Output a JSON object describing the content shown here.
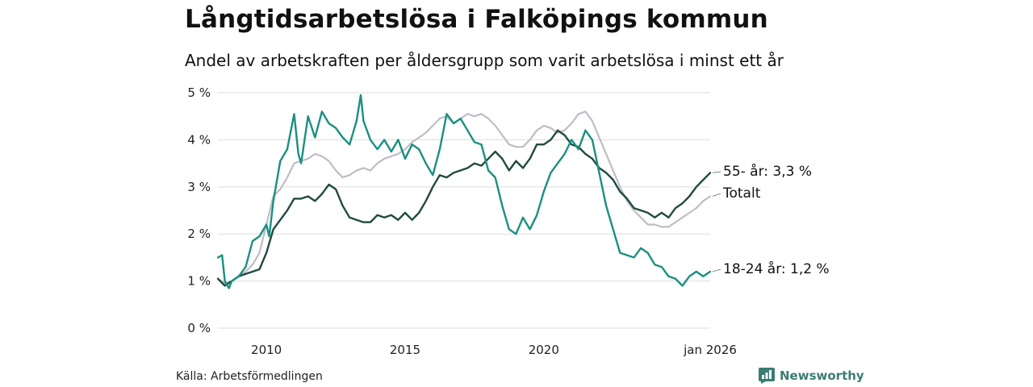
{
  "header": {
    "title": "Långtidsarbetslösa i Falköpings kommun",
    "subtitle": "Andel av arbetskraften per åldersgrupp som varit arbetslösa i minst ett år"
  },
  "footer": {
    "source": "Källa: Arbetsförmedlingen",
    "brand": "Newsworthy"
  },
  "colors": {
    "youth": "#1a9080",
    "older": "#214a40",
    "total": "#c0bcc8",
    "grid": "#dddddd",
    "brand": "#3a7d73"
  },
  "chart_data": {
    "type": "line",
    "title": "Långtidsarbetslösa i Falköpings kommun",
    "subtitle": "Andel av arbetskraften per åldersgrupp som varit arbetslösa i minst ett år",
    "xlabel": "",
    "ylabel": "",
    "x_range": [
      2008.25,
      2026.0
    ],
    "ylim": [
      0,
      5
    ],
    "y_ticks": [
      0,
      1,
      2,
      3,
      4,
      5
    ],
    "y_tick_labels": [
      "0 %",
      "1 %",
      "2 %",
      "3 %",
      "4 %",
      "5 %"
    ],
    "x_ticks": [
      2010,
      2015,
      2020,
      2026.0
    ],
    "x_tick_labels": [
      "2010",
      "2015",
      "2020",
      "jan 2026"
    ],
    "grid": true,
    "legend": "direct labels at line ends (right)",
    "series": [
      {
        "name": "Totalt",
        "label": "Totalt",
        "color_key": "total",
        "points": [
          [
            2008.25,
            1.05
          ],
          [
            2008.5,
            0.95
          ],
          [
            2008.75,
            1.0
          ],
          [
            2009.0,
            1.1
          ],
          [
            2009.25,
            1.2
          ],
          [
            2009.5,
            1.35
          ],
          [
            2009.75,
            1.6
          ],
          [
            2010.0,
            2.2
          ],
          [
            2010.25,
            2.8
          ],
          [
            2010.5,
            2.95
          ],
          [
            2010.75,
            3.2
          ],
          [
            2011.0,
            3.5
          ],
          [
            2011.25,
            3.55
          ],
          [
            2011.5,
            3.6
          ],
          [
            2011.75,
            3.7
          ],
          [
            2012.0,
            3.65
          ],
          [
            2012.25,
            3.55
          ],
          [
            2012.5,
            3.35
          ],
          [
            2012.75,
            3.2
          ],
          [
            2013.0,
            3.25
          ],
          [
            2013.25,
            3.35
          ],
          [
            2013.5,
            3.4
          ],
          [
            2013.75,
            3.35
          ],
          [
            2014.0,
            3.5
          ],
          [
            2014.25,
            3.6
          ],
          [
            2014.5,
            3.65
          ],
          [
            2014.75,
            3.7
          ],
          [
            2015.0,
            3.8
          ],
          [
            2015.25,
            3.95
          ],
          [
            2015.5,
            4.05
          ],
          [
            2015.75,
            4.15
          ],
          [
            2016.0,
            4.3
          ],
          [
            2016.25,
            4.45
          ],
          [
            2016.5,
            4.5
          ],
          [
            2016.75,
            4.35
          ],
          [
            2017.0,
            4.45
          ],
          [
            2017.25,
            4.55
          ],
          [
            2017.5,
            4.5
          ],
          [
            2017.75,
            4.55
          ],
          [
            2018.0,
            4.45
          ],
          [
            2018.25,
            4.3
          ],
          [
            2018.5,
            4.1
          ],
          [
            2018.75,
            3.9
          ],
          [
            2019.0,
            3.85
          ],
          [
            2019.25,
            3.85
          ],
          [
            2019.5,
            4.0
          ],
          [
            2019.75,
            4.2
          ],
          [
            2020.0,
            4.3
          ],
          [
            2020.25,
            4.25
          ],
          [
            2020.5,
            4.15
          ],
          [
            2020.75,
            4.2
          ],
          [
            2021.0,
            4.35
          ],
          [
            2021.25,
            4.55
          ],
          [
            2021.5,
            4.6
          ],
          [
            2021.75,
            4.4
          ],
          [
            2022.0,
            4.05
          ],
          [
            2022.25,
            3.7
          ],
          [
            2022.5,
            3.35
          ],
          [
            2022.75,
            3.0
          ],
          [
            2023.0,
            2.7
          ],
          [
            2023.25,
            2.5
          ],
          [
            2023.5,
            2.35
          ],
          [
            2023.75,
            2.2
          ],
          [
            2024.0,
            2.2
          ],
          [
            2024.25,
            2.15
          ],
          [
            2024.5,
            2.15
          ],
          [
            2024.75,
            2.25
          ],
          [
            2025.0,
            2.35
          ],
          [
            2025.25,
            2.45
          ],
          [
            2025.5,
            2.55
          ],
          [
            2025.75,
            2.7
          ],
          [
            2026.0,
            2.8
          ]
        ]
      },
      {
        "name": "55- år",
        "label": "55- år: 3,3 %",
        "color_key": "older",
        "points": [
          [
            2008.25,
            1.05
          ],
          [
            2008.5,
            0.9
          ],
          [
            2008.75,
            1.0
          ],
          [
            2009.0,
            1.1
          ],
          [
            2009.25,
            1.15
          ],
          [
            2009.5,
            1.2
          ],
          [
            2009.75,
            1.25
          ],
          [
            2010.0,
            1.6
          ],
          [
            2010.25,
            2.1
          ],
          [
            2010.5,
            2.3
          ],
          [
            2010.75,
            2.5
          ],
          [
            2011.0,
            2.75
          ],
          [
            2011.25,
            2.75
          ],
          [
            2011.5,
            2.8
          ],
          [
            2011.75,
            2.7
          ],
          [
            2012.0,
            2.85
          ],
          [
            2012.25,
            3.05
          ],
          [
            2012.5,
            2.95
          ],
          [
            2012.75,
            2.6
          ],
          [
            2013.0,
            2.35
          ],
          [
            2013.25,
            2.3
          ],
          [
            2013.5,
            2.25
          ],
          [
            2013.75,
            2.25
          ],
          [
            2014.0,
            2.4
          ],
          [
            2014.25,
            2.35
          ],
          [
            2014.5,
            2.4
          ],
          [
            2014.75,
            2.3
          ],
          [
            2015.0,
            2.45
          ],
          [
            2015.25,
            2.3
          ],
          [
            2015.5,
            2.45
          ],
          [
            2015.75,
            2.7
          ],
          [
            2016.0,
            3.0
          ],
          [
            2016.25,
            3.25
          ],
          [
            2016.5,
            3.2
          ],
          [
            2016.75,
            3.3
          ],
          [
            2017.0,
            3.35
          ],
          [
            2017.25,
            3.4
          ],
          [
            2017.5,
            3.5
          ],
          [
            2017.75,
            3.45
          ],
          [
            2018.0,
            3.6
          ],
          [
            2018.25,
            3.75
          ],
          [
            2018.5,
            3.6
          ],
          [
            2018.75,
            3.35
          ],
          [
            2019.0,
            3.55
          ],
          [
            2019.25,
            3.4
          ],
          [
            2019.5,
            3.6
          ],
          [
            2019.75,
            3.9
          ],
          [
            2020.0,
            3.9
          ],
          [
            2020.25,
            4.0
          ],
          [
            2020.5,
            4.2
          ],
          [
            2020.75,
            4.1
          ],
          [
            2021.0,
            3.9
          ],
          [
            2021.25,
            3.85
          ],
          [
            2021.5,
            3.7
          ],
          [
            2021.75,
            3.6
          ],
          [
            2022.0,
            3.4
          ],
          [
            2022.25,
            3.3
          ],
          [
            2022.5,
            3.15
          ],
          [
            2022.75,
            2.9
          ],
          [
            2023.0,
            2.75
          ],
          [
            2023.25,
            2.55
          ],
          [
            2023.5,
            2.5
          ],
          [
            2023.75,
            2.45
          ],
          [
            2024.0,
            2.35
          ],
          [
            2024.25,
            2.45
          ],
          [
            2024.5,
            2.35
          ],
          [
            2024.75,
            2.55
          ],
          [
            2025.0,
            2.65
          ],
          [
            2025.25,
            2.8
          ],
          [
            2025.5,
            3.0
          ],
          [
            2025.75,
            3.15
          ],
          [
            2026.0,
            3.3
          ]
        ]
      },
      {
        "name": "18-24 år",
        "label": "18-24 år: 1,2 %",
        "color_key": "youth",
        "points": [
          [
            2008.25,
            1.5
          ],
          [
            2008.4,
            1.55
          ],
          [
            2008.5,
            1.0
          ],
          [
            2008.65,
            0.85
          ],
          [
            2008.75,
            1.0
          ],
          [
            2009.0,
            1.1
          ],
          [
            2009.25,
            1.3
          ],
          [
            2009.5,
            1.85
          ],
          [
            2009.75,
            1.95
          ],
          [
            2010.0,
            2.2
          ],
          [
            2010.1,
            1.95
          ],
          [
            2010.25,
            2.7
          ],
          [
            2010.5,
            3.55
          ],
          [
            2010.75,
            3.8
          ],
          [
            2011.0,
            4.55
          ],
          [
            2011.15,
            3.7
          ],
          [
            2011.25,
            3.5
          ],
          [
            2011.5,
            4.5
          ],
          [
            2011.75,
            4.05
          ],
          [
            2012.0,
            4.6
          ],
          [
            2012.25,
            4.35
          ],
          [
            2012.5,
            4.25
          ],
          [
            2012.75,
            4.05
          ],
          [
            2013.0,
            3.9
          ],
          [
            2013.25,
            4.4
          ],
          [
            2013.4,
            4.95
          ],
          [
            2013.5,
            4.4
          ],
          [
            2013.75,
            4.0
          ],
          [
            2014.0,
            3.8
          ],
          [
            2014.25,
            4.0
          ],
          [
            2014.5,
            3.75
          ],
          [
            2014.75,
            4.0
          ],
          [
            2015.0,
            3.6
          ],
          [
            2015.25,
            3.9
          ],
          [
            2015.5,
            3.8
          ],
          [
            2015.75,
            3.5
          ],
          [
            2016.0,
            3.25
          ],
          [
            2016.25,
            3.8
          ],
          [
            2016.5,
            4.55
          ],
          [
            2016.75,
            4.35
          ],
          [
            2017.0,
            4.45
          ],
          [
            2017.25,
            4.2
          ],
          [
            2017.5,
            3.95
          ],
          [
            2017.75,
            3.9
          ],
          [
            2018.0,
            3.35
          ],
          [
            2018.25,
            3.2
          ],
          [
            2018.5,
            2.6
          ],
          [
            2018.75,
            2.1
          ],
          [
            2019.0,
            2.0
          ],
          [
            2019.25,
            2.35
          ],
          [
            2019.5,
            2.1
          ],
          [
            2019.75,
            2.4
          ],
          [
            2020.0,
            2.9
          ],
          [
            2020.25,
            3.3
          ],
          [
            2020.5,
            3.5
          ],
          [
            2020.75,
            3.7
          ],
          [
            2021.0,
            4.0
          ],
          [
            2021.25,
            3.8
          ],
          [
            2021.5,
            4.2
          ],
          [
            2021.75,
            4.0
          ],
          [
            2022.0,
            3.3
          ],
          [
            2022.25,
            2.6
          ],
          [
            2022.5,
            2.1
          ],
          [
            2022.75,
            1.6
          ],
          [
            2023.0,
            1.55
          ],
          [
            2023.25,
            1.5
          ],
          [
            2023.5,
            1.7
          ],
          [
            2023.75,
            1.6
          ],
          [
            2024.0,
            1.35
          ],
          [
            2024.25,
            1.3
          ],
          [
            2024.5,
            1.1
          ],
          [
            2024.75,
            1.05
          ],
          [
            2025.0,
            0.9
          ],
          [
            2025.25,
            1.1
          ],
          [
            2025.5,
            1.2
          ],
          [
            2025.75,
            1.1
          ],
          [
            2026.0,
            1.2
          ]
        ]
      }
    ]
  }
}
